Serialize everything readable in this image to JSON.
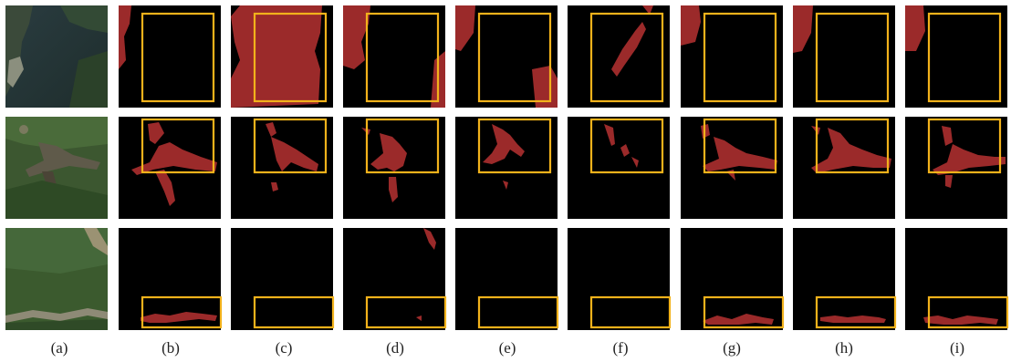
{
  "figure": {
    "columns": [
      {
        "label": "(a)",
        "kind": "satellite"
      },
      {
        "label": "(b)",
        "kind": "mask"
      },
      {
        "label": "(c)",
        "kind": "mask"
      },
      {
        "label": "(d)",
        "kind": "mask"
      },
      {
        "label": "(e)",
        "kind": "mask"
      },
      {
        "label": "(f)",
        "kind": "mask"
      },
      {
        "label": "(g)",
        "kind": "mask"
      },
      {
        "label": "(h)",
        "kind": "mask"
      },
      {
        "label": "(i)",
        "kind": "mask"
      }
    ],
    "rows": 3,
    "colors": {
      "mask_background": "#000000",
      "mask_foreground": "#9b2a2a",
      "highlight_box": "#f2b21b",
      "label_text": "#222222"
    }
  }
}
